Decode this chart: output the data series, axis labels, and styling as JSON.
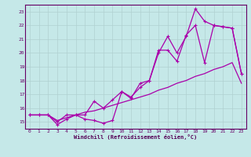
{
  "xlabel": "Windchill (Refroidissement éolien,°C)",
  "background_color": "#c5e8e8",
  "grid_color": "#b0d0d0",
  "line_color": "#aa00aa",
  "xlim": [
    -0.5,
    23.5
  ],
  "ylim": [
    14.5,
    23.5
  ],
  "yticks": [
    15,
    16,
    17,
    18,
    19,
    20,
    21,
    22,
    23
  ],
  "xticks": [
    0,
    1,
    2,
    3,
    4,
    5,
    6,
    7,
    8,
    9,
    10,
    11,
    12,
    13,
    14,
    15,
    16,
    17,
    18,
    19,
    20,
    21,
    22,
    23
  ],
  "line_smooth_x": [
    0,
    1,
    2,
    3,
    4,
    5,
    6,
    7,
    8,
    9,
    10,
    11,
    12,
    13,
    14,
    15,
    16,
    17,
    18,
    19,
    20,
    21,
    22,
    23
  ],
  "line_smooth_y": [
    15.5,
    15.5,
    15.5,
    15.1,
    15.3,
    15.5,
    15.7,
    15.8,
    16.0,
    16.2,
    16.4,
    16.6,
    16.8,
    17.0,
    17.3,
    17.5,
    17.8,
    18.0,
    18.3,
    18.5,
    18.8,
    19.0,
    19.3,
    17.8
  ],
  "line_jagged1_x": [
    0,
    1,
    2,
    3,
    4,
    5,
    6,
    7,
    8,
    9,
    10,
    11,
    12,
    13,
    14,
    15,
    16,
    17,
    18,
    19,
    20,
    21,
    22,
    23
  ],
  "line_jagged1_y": [
    15.5,
    15.5,
    15.5,
    14.8,
    15.2,
    15.5,
    15.2,
    15.1,
    14.9,
    15.1,
    17.2,
    16.7,
    17.8,
    18.0,
    20.2,
    20.2,
    19.4,
    21.3,
    22.0,
    19.3,
    22.0,
    21.9,
    21.8,
    18.5
  ],
  "line_jagged2_x": [
    0,
    1,
    2,
    3,
    4,
    5,
    6,
    7,
    8,
    9,
    10,
    11,
    12,
    13,
    14,
    15,
    16,
    17,
    18,
    19,
    20,
    21,
    22,
    23
  ],
  "line_jagged2_y": [
    15.5,
    15.5,
    15.5,
    15.0,
    15.5,
    15.5,
    15.5,
    16.5,
    16.0,
    16.6,
    17.2,
    16.8,
    17.5,
    18.0,
    20.0,
    21.2,
    20.0,
    21.2,
    23.2,
    22.3,
    22.0,
    21.9,
    21.8,
    18.5
  ]
}
